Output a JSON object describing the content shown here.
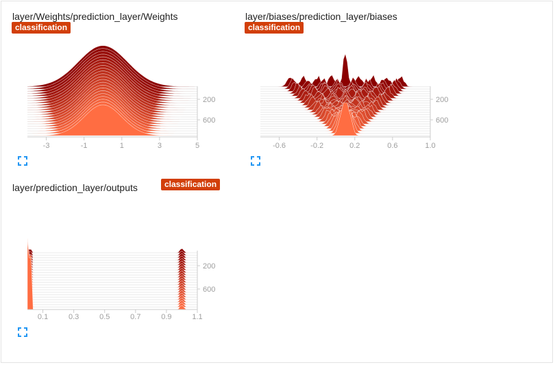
{
  "colors": {
    "accent": "#d23f0a",
    "ridge_front": "#ff6d42",
    "ridge_back": "#8b0000",
    "icon_blue": "#2196f3",
    "tick": "#9e9e9e"
  },
  "icons": {
    "expand": "fullscreen-expand-icon"
  },
  "cards": [
    {
      "title": "layer/Weights/prediction_layer/Weights",
      "badge": "classification"
    },
    {
      "title": "layer/biases/prediction_layer/biases",
      "badge": "classification"
    },
    {
      "title": "layer/prediction_layer/outputs",
      "badge": "classification"
    }
  ],
  "chart_data": [
    {
      "type": "area",
      "title": "layer/Weights/prediction_layer/Weights",
      "xlim": [
        -4,
        5
      ],
      "x_ticks": [
        -3,
        -1,
        1,
        3,
        5
      ],
      "step_ticks": [
        200,
        600
      ],
      "steps_range": [
        0,
        900
      ],
      "distribution": "gaussian",
      "center": 0,
      "spread_start": 1.0,
      "spread_end": 1.3
    },
    {
      "type": "area",
      "title": "layer/biases/prediction_layer/biases",
      "xlim": [
        -0.8,
        1.0
      ],
      "x_ticks": [
        -0.6,
        -0.2,
        0.2,
        0.6,
        1.0
      ],
      "x_tick_labels": [
        "-0.6",
        "-0.2",
        "0.2",
        "0.6",
        "1.0"
      ],
      "step_ticks": [
        200,
        600
      ],
      "steps_range": [
        0,
        900
      ],
      "distribution": "multi-peak",
      "center": 0.1,
      "spread_start": 0.05,
      "spread_end": 0.6
    },
    {
      "type": "area",
      "title": "layer/prediction_layer/outputs",
      "xlim": [
        0,
        1.1
      ],
      "x_ticks": [
        0.1,
        0.3,
        0.5,
        0.7,
        0.9,
        1.1
      ],
      "step_ticks": [
        200,
        600
      ],
      "steps_range": [
        0,
        900
      ],
      "distribution": "bimodal",
      "peaks": [
        0.0,
        1.0
      ]
    }
  ]
}
